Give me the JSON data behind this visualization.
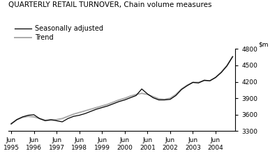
{
  "title": "QUARTERLY RETAIL TURNOVER, Chain volume measures",
  "legend": [
    "Seasonally adjusted",
    "Trend"
  ],
  "ylim": [
    3300,
    4800
  ],
  "yticks": [
    3300,
    3600,
    3900,
    4200,
    4500,
    4800
  ],
  "xtick_labels": [
    "Jun\n1995",
    "Jun\n1996",
    "Jun\n1997",
    "Jun\n1998",
    "Jun\n1999",
    "Jun\n2000",
    "Jun\n2001",
    "Jun\n2002",
    "Jun\n2003",
    "Jun\n2004"
  ],
  "xtick_positions": [
    0,
    4,
    8,
    12,
    16,
    20,
    24,
    28,
    32,
    36
  ],
  "seasonally_adjusted": [
    3430,
    3510,
    3560,
    3590,
    3600,
    3530,
    3490,
    3510,
    3490,
    3470,
    3530,
    3570,
    3590,
    3620,
    3660,
    3700,
    3730,
    3760,
    3800,
    3840,
    3870,
    3910,
    3950,
    4070,
    3980,
    3910,
    3870,
    3870,
    3880,
    3950,
    4060,
    4130,
    4190,
    4180,
    4230,
    4220,
    4280,
    4370,
    4490,
    4660
  ],
  "trend": [
    3440,
    3510,
    3550,
    3570,
    3560,
    3530,
    3500,
    3500,
    3510,
    3530,
    3570,
    3610,
    3640,
    3670,
    3700,
    3730,
    3760,
    3790,
    3830,
    3870,
    3900,
    3940,
    3970,
    3990,
    3970,
    3930,
    3890,
    3880,
    3900,
    3970,
    4070,
    4140,
    4190,
    4190,
    4220,
    4220,
    4280,
    4380,
    4500,
    4660
  ],
  "sa_color": "#000000",
  "trend_color": "#aaaaaa",
  "sa_linewidth": 0.9,
  "trend_linewidth": 1.4,
  "title_fontsize": 7.5,
  "tick_fontsize": 6.5,
  "legend_fontsize": 7.0,
  "background_color": "#ffffff"
}
